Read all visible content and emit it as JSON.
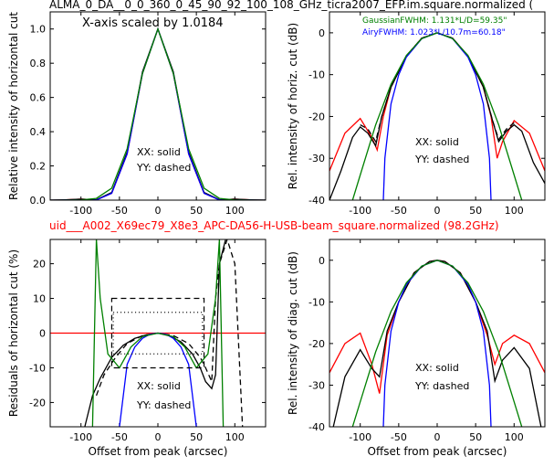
{
  "figure": {
    "title_top": "ALMA_0_DA__0_0_360_0_45_90_92_100_108_GHz_ticra2007_EFP.im.square.normalized (",
    "title_middle": "uid___A002_X69ec79_X8e3_APC-DA56-H-USB-beam_square.normalized (98.2GHz)",
    "scale_note": "X-axis scaled by 1.0184",
    "gaussian_fwhm": "GaussianFWHM: 1.131*L/D=59.35\"",
    "airy_fwhm": "AiryFWHM: 1.023*L/10.7m=60.18\"",
    "colors": {
      "red": "#ff0000",
      "black": "#000000",
      "blue": "#0000ff",
      "green": "#008000",
      "title2": "#ff0000"
    }
  },
  "chart_data": [
    {
      "type": "line",
      "panel": "top-left",
      "ylabel": "Relative intensity of horizontal cut",
      "xlabel": "",
      "xlim": [
        -140,
        140
      ],
      "ylim": [
        0,
        1.1
      ],
      "xticks": [
        -100,
        -50,
        0,
        50,
        100
      ],
      "yticks": [
        0.0,
        0.2,
        0.4,
        0.6,
        0.8,
        1.0
      ],
      "ytick_labels": [
        "0.0",
        "0.2",
        "0.4",
        "0.6",
        "0.8",
        "1.0"
      ],
      "annotations": [
        "XX: solid",
        "YY: dashed"
      ],
      "series": [
        {
          "color": "#ff0000",
          "style": "solid",
          "x": [
            -140,
            -120,
            -100,
            -80,
            -60,
            -40,
            -20,
            0,
            20,
            40,
            60,
            80,
            100,
            120,
            140
          ],
          "y": [
            0,
            0.002,
            0.006,
            0.002,
            0.04,
            0.27,
            0.74,
            1.0,
            0.74,
            0.27,
            0.04,
            0.002,
            0.006,
            0.002,
            0
          ]
        },
        {
          "color": "#000000",
          "style": "solid",
          "x": [
            -140,
            -120,
            -100,
            -80,
            -60,
            -40,
            -20,
            0,
            20,
            40,
            60,
            80,
            100,
            120,
            140
          ],
          "y": [
            0,
            0.002,
            0.006,
            0.002,
            0.045,
            0.28,
            0.75,
            1.0,
            0.75,
            0.28,
            0.045,
            0.002,
            0.006,
            0.002,
            0
          ]
        },
        {
          "color": "#0000ff",
          "style": "solid",
          "x": [
            -140,
            -120,
            -100,
            -80,
            -60,
            -40,
            -20,
            0,
            20,
            40,
            60,
            80,
            100,
            120,
            140
          ],
          "y": [
            0,
            0,
            0,
            0.001,
            0.04,
            0.27,
            0.74,
            1.0,
            0.74,
            0.27,
            0.04,
            0.001,
            0,
            0,
            0
          ]
        },
        {
          "color": "#008000",
          "style": "solid",
          "x": [
            -140,
            -120,
            -100,
            -80,
            -60,
            -40,
            -20,
            0,
            20,
            40,
            60,
            80,
            100,
            120,
            140
          ],
          "y": [
            0,
            0,
            0.001,
            0.01,
            0.07,
            0.3,
            0.74,
            1.0,
            0.74,
            0.3,
            0.07,
            0.01,
            0.001,
            0,
            0
          ]
        }
      ]
    },
    {
      "type": "line",
      "panel": "top-right",
      "ylabel": "Rel. intensity of horiz. cut (dB)",
      "xlabel": "",
      "xlim": [
        -140,
        140
      ],
      "ylim": [
        -40,
        5
      ],
      "xticks": [
        -100,
        -50,
        0,
        50,
        100
      ],
      "yticks": [
        -40,
        -30,
        -20,
        -10,
        0
      ],
      "annotations": [
        "XX: solid",
        "YY: dashed"
      ],
      "series": [
        {
          "color": "#ff0000",
          "style": "solid",
          "x": [
            -140,
            -120,
            -100,
            -85,
            -78,
            -70,
            -60,
            -40,
            -20,
            0,
            20,
            40,
            60,
            70,
            78,
            85,
            100,
            120,
            140
          ],
          "y": [
            -33,
            -24,
            -20.5,
            -25,
            -28,
            -20,
            -13,
            -5.5,
            -1.3,
            0,
            -1.3,
            -5.5,
            -13,
            -20,
            -30,
            -26,
            -21,
            -24,
            -33
          ]
        },
        {
          "color": "#000000",
          "style": "solid",
          "x": [
            -140,
            -125,
            -110,
            -100,
            -90,
            -80,
            -72,
            -60,
            -40,
            -20,
            0,
            20,
            40,
            60,
            72,
            80,
            90,
            100,
            110,
            125,
            140
          ],
          "y": [
            -40,
            -33,
            -25,
            -22.5,
            -24,
            -27,
            -20,
            -13,
            -5.5,
            -1.3,
            0,
            -1.3,
            -5.5,
            -13,
            -21,
            -26,
            -23.5,
            -22,
            -23.5,
            -31,
            -36
          ]
        },
        {
          "color": "#000000",
          "style": "dashed",
          "x": [
            -100,
            -90,
            -80,
            -72,
            -60,
            -40,
            -20,
            0,
            20,
            40,
            60,
            72,
            80,
            90,
            100
          ],
          "y": [
            -22,
            -23,
            -26,
            -20,
            -13,
            -5.5,
            -1.3,
            0,
            -1.3,
            -5.5,
            -13,
            -21,
            -25.5,
            -23,
            -21.5
          ]
        },
        {
          "color": "#0000ff",
          "style": "solid",
          "x": [
            -70,
            -68,
            -60,
            -50,
            -40,
            -20,
            0,
            20,
            40,
            50,
            60,
            68,
            70
          ],
          "y": [
            -40,
            -30,
            -17,
            -10,
            -5.8,
            -1.4,
            0,
            -1.4,
            -5.8,
            -10,
            -17,
            -30,
            -40
          ]
        },
        {
          "color": "#008000",
          "style": "solid",
          "x": [
            -110,
            -100,
            -80,
            -60,
            -40,
            -20,
            0,
            20,
            40,
            60,
            80,
            100,
            110
          ],
          "y": [
            -40,
            -34,
            -22,
            -12.3,
            -5.4,
            -1.4,
            0,
            -1.4,
            -5.4,
            -12.3,
            -22,
            -34,
            -40
          ]
        }
      ]
    },
    {
      "type": "line",
      "panel": "bottom-left",
      "ylabel": "Residuals of horizontal cut (%)",
      "xlabel": "Offset from peak (arcsec)",
      "xlim": [
        -140,
        140
      ],
      "ylim": [
        -27,
        27
      ],
      "xticks": [
        -100,
        -50,
        0,
        50,
        100
      ],
      "yticks": [
        -20,
        -10,
        0,
        10,
        20
      ],
      "annotations": [
        "XX: solid",
        "YY: dashed"
      ],
      "series": [
        {
          "color": "#ff0000",
          "style": "solid",
          "x": [
            -140,
            140
          ],
          "y": [
            0,
            0
          ]
        },
        {
          "color": "#000000",
          "style": "solid",
          "x": [
            -95,
            -85,
            -75,
            -60,
            -45,
            -30,
            -15,
            0,
            15,
            30,
            45,
            55,
            62,
            70,
            75,
            80,
            88
          ],
          "y": [
            -27,
            -18,
            -13,
            -7,
            -3.5,
            -1.5,
            -0.5,
            0,
            -0.8,
            -2.5,
            -6,
            -10,
            -14,
            -16,
            -12,
            20,
            27
          ]
        },
        {
          "color": "#000000",
          "style": "dashed",
          "x": [
            -80,
            -70,
            -55,
            -40,
            -20,
            0,
            20,
            40,
            55,
            62,
            70,
            75,
            80,
            90,
            100,
            110
          ],
          "y": [
            -18,
            -12,
            -7,
            -3,
            -0.7,
            0,
            -0.7,
            -3,
            -7,
            -10,
            -14,
            10,
            20,
            27,
            20,
            -27
          ]
        },
        {
          "color": "#0000ff",
          "style": "solid",
          "x": [
            -50,
            -40,
            -30,
            -20,
            -10,
            0,
            10,
            20,
            30,
            40,
            50
          ],
          "y": [
            -27,
            -9,
            -4,
            -1.5,
            -0.3,
            0,
            -0.3,
            -1.5,
            -4,
            -9,
            -27
          ]
        },
        {
          "color": "#008000",
          "style": "solid",
          "x": [
            -85,
            -80,
            -75,
            -65,
            -50,
            -35,
            -20,
            0,
            20,
            35,
            50,
            65,
            75,
            80,
            85
          ],
          "y": [
            -27,
            27,
            10,
            -6,
            -10,
            -4,
            -1,
            0,
            -1,
            -4,
            -10,
            -6,
            10,
            27,
            -27
          ]
        }
      ]
    },
    {
      "type": "line",
      "panel": "bottom-right",
      "ylabel": "Rel. intensity of diag. cut (dB)",
      "xlabel": "Offset from peak (arcsec)",
      "xlim": [
        -140,
        140
      ],
      "ylim": [
        -40,
        5
      ],
      "xticks": [
        -100,
        -50,
        0,
        50,
        100
      ],
      "yticks": [
        -40,
        -30,
        -20,
        -10,
        0
      ],
      "annotations": [
        "XX: solid",
        "YY: dashed"
      ],
      "series": [
        {
          "color": "#ff0000",
          "style": "solid",
          "x": [
            -140,
            -120,
            -100,
            -85,
            -75,
            -65,
            -50,
            -30,
            -10,
            0,
            10,
            30,
            50,
            65,
            75,
            85,
            100,
            120,
            140
          ],
          "y": [
            -27,
            -20,
            -17.5,
            -25,
            -32,
            -18,
            -10,
            -3,
            -0.3,
            0,
            -0.3,
            -3,
            -10,
            -18,
            -25,
            -20,
            -18,
            -20,
            -27
          ]
        },
        {
          "color": "#000000",
          "style": "solid",
          "x": [
            -135,
            -120,
            -100,
            -85,
            -75,
            -65,
            -50,
            -30,
            -10,
            0,
            10,
            30,
            50,
            65,
            75,
            85,
            100,
            120,
            135
          ],
          "y": [
            -40,
            -28,
            -21.5,
            -26,
            -28,
            -17,
            -10,
            -3,
            -0.3,
            0,
            -0.3,
            -3,
            -10,
            -17,
            -29,
            -24,
            -21,
            -26,
            -40
          ]
        },
        {
          "color": "#0000ff",
          "style": "solid",
          "x": [
            -70,
            -68,
            -60,
            -50,
            -40,
            -20,
            0,
            20,
            40,
            50,
            60,
            68,
            70
          ],
          "y": [
            -40,
            -30,
            -17,
            -10,
            -5.8,
            -1.4,
            0,
            -1.4,
            -5.8,
            -10,
            -17,
            -30,
            -40
          ]
        },
        {
          "color": "#008000",
          "style": "solid",
          "x": [
            -110,
            -100,
            -80,
            -60,
            -40,
            -20,
            0,
            20,
            40,
            60,
            80,
            100,
            110
          ],
          "y": [
            -40,
            -34,
            -22,
            -12.3,
            -5.4,
            -1.4,
            0,
            -1.4,
            -5.4,
            -12.3,
            -22,
            -34,
            -40
          ]
        }
      ]
    }
  ]
}
